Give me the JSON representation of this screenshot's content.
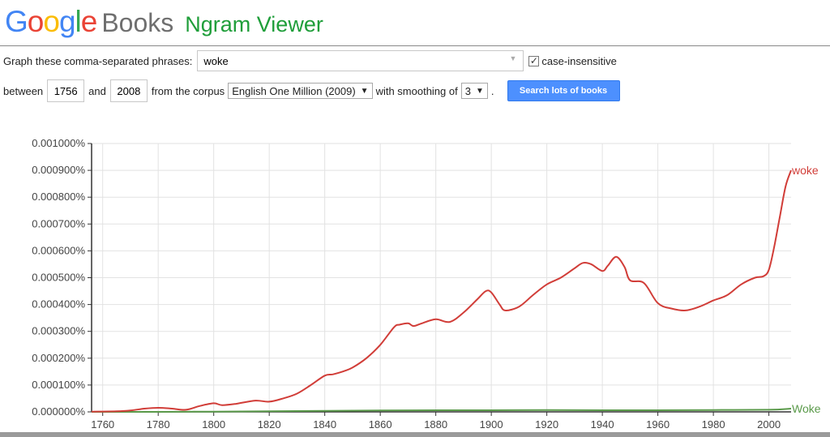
{
  "header": {
    "logo_letters": [
      {
        "ch": "G",
        "color": "#4285F4"
      },
      {
        "ch": "o",
        "color": "#EA4335"
      },
      {
        "ch": "o",
        "color": "#FBBC05"
      },
      {
        "ch": "g",
        "color": "#4285F4"
      },
      {
        "ch": "l",
        "color": "#34A853"
      },
      {
        "ch": "e",
        "color": "#EA4335"
      }
    ],
    "product": "Books",
    "app_title": "Ngram Viewer"
  },
  "form": {
    "phrases_label": "Graph these comma-separated phrases:",
    "phrases_value": "woke",
    "case_insensitive_checked": true,
    "case_insensitive_label": "case-insensitive",
    "between_label": "between",
    "start_year": "1756",
    "and_label": "and",
    "end_year": "2008",
    "corpus_label": "from the corpus",
    "corpus_value": "English One Million (2009)",
    "smoothing_label": "with smoothing of",
    "smoothing_value": "3",
    "smoothing_suffix": ".",
    "search_button": "Search lots of books"
  },
  "chart_data": {
    "type": "line",
    "x_range": [
      1756,
      2008
    ],
    "y_range": [
      0,
      0.001
    ],
    "x_ticks": [
      1760,
      1780,
      1800,
      1820,
      1840,
      1860,
      1880,
      1900,
      1920,
      1940,
      1960,
      1980,
      2000
    ],
    "x_tick_labels": [
      "1760",
      "1780",
      "1800",
      "1820",
      "1840",
      "1860",
      "1880",
      "1900",
      "1920",
      "1940",
      "1960",
      "1980",
      "2000"
    ],
    "y_ticks": [
      0,
      0.0001,
      0.0002,
      0.0003,
      0.0004,
      0.0005,
      0.0006,
      0.0007,
      0.0008,
      0.0009,
      0.001
    ],
    "y_tick_labels": [
      "0.000000%",
      "0.000100%",
      "0.000200%",
      "0.000300%",
      "0.000400%",
      "0.000500%",
      "0.000600%",
      "0.000700%",
      "0.000800%",
      "0.000900%",
      "0.001000%"
    ],
    "grid": true,
    "legend": "labels at line ends (right)",
    "series": [
      {
        "name": "woke",
        "color": "#d13d38",
        "x": [
          1756,
          1765,
          1770,
          1775,
          1780,
          1785,
          1790,
          1795,
          1800,
          1803,
          1808,
          1815,
          1820,
          1825,
          1830,
          1835,
          1840,
          1843,
          1847,
          1850,
          1855,
          1860,
          1865,
          1867,
          1870,
          1872,
          1875,
          1880,
          1885,
          1890,
          1895,
          1898,
          1900,
          1903,
          1905,
          1910,
          1915,
          1920,
          1925,
          1930,
          1933,
          1936,
          1940,
          1942,
          1945,
          1948,
          1950,
          1955,
          1960,
          1965,
          1970,
          1975,
          1980,
          1985,
          1990,
          1995,
          1998,
          2000,
          2002,
          2004,
          2006,
          2008
        ],
        "y": [
          1e-06,
          2e-06,
          5e-06,
          1.2e-05,
          1.5e-05,
          1.2e-05,
          8e-06,
          2.2e-05,
          3.2e-05,
          2.5e-05,
          3e-05,
          4.2e-05,
          3.8e-05,
          5e-05,
          6.8e-05,
          0.0001,
          0.000135,
          0.00014,
          0.000152,
          0.000165,
          0.0002,
          0.00025,
          0.000316,
          0.000325,
          0.00033,
          0.00032,
          0.00033,
          0.000345,
          0.000335,
          0.00037,
          0.00042,
          0.00045,
          0.000445,
          0.0004,
          0.000378,
          0.000392,
          0.000435,
          0.000475,
          0.0005,
          0.000535,
          0.000555,
          0.00055,
          0.000525,
          0.000545,
          0.000578,
          0.00054,
          0.00049,
          0.00048,
          0.000405,
          0.000385,
          0.000378,
          0.000392,
          0.000415,
          0.000435,
          0.000475,
          0.0005,
          0.000505,
          0.00053,
          0.00062,
          0.00073,
          0.00084,
          0.0009
        ]
      },
      {
        "name": "Woke",
        "color": "#5a9a4a",
        "x": [
          1756,
          1780,
          1800,
          1820,
          1840,
          1860,
          1880,
          1900,
          1920,
          1940,
          1960,
          1980,
          2000,
          2008
        ],
        "y": [
          0.0,
          0.0,
          1e-06,
          2e-06,
          4e-06,
          5e-06,
          6e-06,
          6e-06,
          7e-06,
          6e-06,
          6e-06,
          7e-06,
          8e-06,
          1.2e-05
        ]
      }
    ]
  }
}
